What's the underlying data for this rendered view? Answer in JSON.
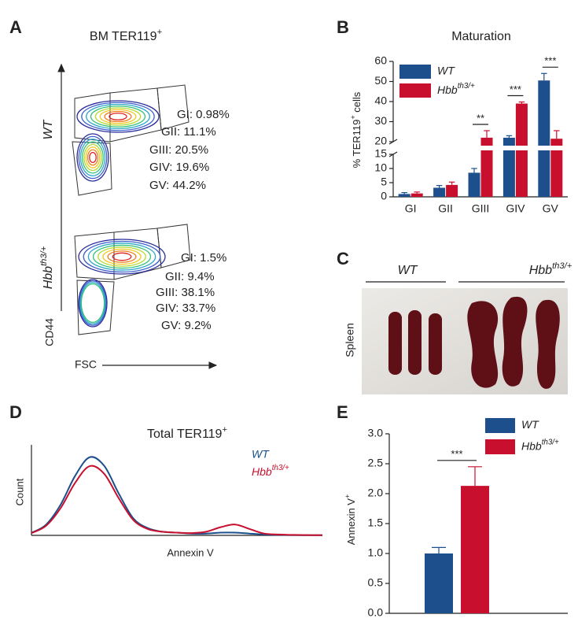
{
  "panel_a": {
    "label": "A",
    "title": [
      "BM TER119",
      {
        "sup": "+"
      }
    ],
    "plots": [
      {
        "name": "WT",
        "gates": [
          "GI: 0.98%",
          "GII: 11.1%",
          "GIII: 20.5%",
          "GIV: 19.6%",
          "GV: 44.2%"
        ]
      },
      {
        "name": [
          "Hbb",
          {
            "sup": "th3/+"
          }
        ],
        "gates": [
          "GI: 1.5%",
          "GII: 9.4%",
          "GIII: 38.1%",
          "GIV: 33.7%",
          "GV: 9.2%"
        ]
      }
    ],
    "y_label": "CD44",
    "x_label": "FSC"
  },
  "panel_c": {
    "label": "C",
    "groups": [
      "WT",
      [
        "Hbb",
        {
          "sup": "th3/+"
        }
      ]
    ],
    "row_label": "Spleen"
  },
  "chart_data": [
    {
      "type": "bar",
      "label": "B",
      "title": "Maturation",
      "y_label": [
        "% TER119",
        {
          "sup": "+"
        },
        " cells"
      ],
      "categories": [
        "GI",
        "GII",
        "GIII",
        "GIV",
        "GV"
      ],
      "series": [
        {
          "name": "WT",
          "color": "#1c4f8c",
          "values": [
            1.0,
            3.2,
            8.5,
            22,
            50.5
          ],
          "errors": [
            0.5,
            0.8,
            1.5,
            1,
            3.5
          ]
        },
        {
          "name": [
            "Hbb",
            {
              "sup": "th3/+"
            }
          ],
          "color": "#c8102e",
          "values": [
            1.2,
            4.2,
            22,
            39,
            21.5
          ],
          "errors": [
            0.5,
            1.0,
            3.5,
            0.8,
            4
          ]
        }
      ],
      "significance": [
        null,
        null,
        "**",
        "***",
        "***"
      ],
      "ylim": [
        0,
        60
      ],
      "axis_break": [
        15,
        20
      ],
      "yticks": [
        0,
        5,
        10,
        15,
        20,
        30,
        40,
        50,
        60
      ],
      "legend": "upper-left"
    },
    {
      "type": "line",
      "label": "D",
      "title": [
        "Total TER119",
        {
          "sup": "+"
        }
      ],
      "x_label": "Annexin V",
      "y_label": "Count",
      "x": [
        0,
        5,
        10,
        15,
        20,
        25,
        30,
        35,
        40,
        45,
        50,
        55,
        60,
        65,
        70,
        75,
        80,
        85,
        90,
        95,
        100
      ],
      "series": [
        {
          "name": "WT",
          "color": "#1c4f8c",
          "values": [
            2.8,
            11.8,
            33.8,
            65.7,
            86.3,
            76.8,
            46.2,
            18.8,
            8,
            4,
            3,
            2,
            2,
            3,
            3,
            2,
            1,
            0.5,
            0.3,
            0.2,
            0.2
          ]
        },
        {
          "name": [
            "Hbb",
            {
              "sup": "th3/+"
            }
          ],
          "color": "#c8102e",
          "values": [
            2.5,
            10.5,
            30,
            58,
            76.5,
            68,
            41,
            17,
            7,
            4,
            3,
            2.5,
            4,
            9,
            12,
            7,
            2,
            1,
            0.5,
            0.3,
            0.2
          ]
        }
      ],
      "xlim": [
        0,
        100
      ],
      "ylim": [
        0,
        100
      ],
      "legend": "upper-right"
    },
    {
      "type": "bar",
      "label": "E",
      "y_label": [
        "Annexin V",
        {
          "sup": "+"
        }
      ],
      "categories": [
        null
      ],
      "series": [
        {
          "name": "WT",
          "color": "#1c4f8c",
          "values": [
            1.0
          ],
          "errors": [
            0.1
          ]
        },
        {
          "name": [
            "Hbb",
            {
              "sup": "th3/+"
            }
          ],
          "color": "#c8102e",
          "values": [
            2.13
          ],
          "errors": [
            0.32
          ]
        }
      ],
      "significance": [
        "***"
      ],
      "ylim": [
        0,
        3
      ],
      "yticks": [
        {
          "value": 0,
          "label": "0.0"
        },
        {
          "value": 0.5,
          "label": "0.5"
        },
        {
          "value": 1,
          "label": "1.0"
        },
        {
          "value": 1.5,
          "label": "1.5"
        },
        {
          "value": 2,
          "label": "2.0"
        },
        {
          "value": 2.5,
          "label": "2.5"
        },
        {
          "value": 3,
          "label": "3.0"
        }
      ],
      "legend": "upper-right"
    }
  ]
}
